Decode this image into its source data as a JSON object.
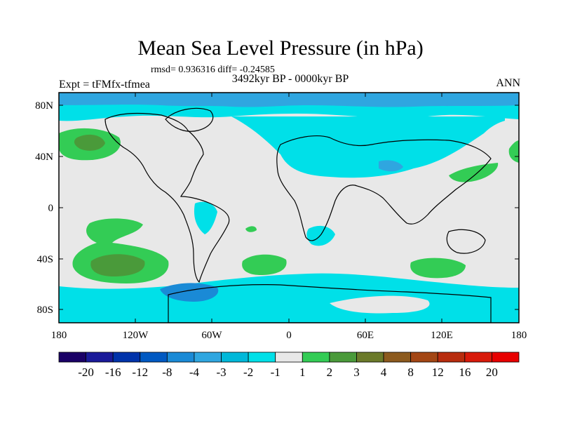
{
  "title": "Mean Sea Level Pressure (in hPa)",
  "stats": "rmsd= 0.936316 diff= -0.24585",
  "experiment": "Expt = tFMfx-tfmea",
  "period": "3492kyr BP - 0000kyr BP",
  "season": "ANN",
  "lat_labels": [
    "80N",
    "40N",
    "0",
    "40S",
    "80S"
  ],
  "lon_labels": [
    "180",
    "120W",
    "60W",
    "0",
    "60E",
    "120E",
    "180"
  ],
  "colorbar_labels": [
    "-20",
    "-16",
    "-12",
    "-8",
    "-4",
    "-3",
    "-2",
    "-1",
    "1",
    "2",
    "3",
    "4",
    "8",
    "12",
    "16",
    "20"
  ],
  "colorbar_colors": [
    "#1a0066",
    "#1a1a99",
    "#0033aa",
    "#0059c2",
    "#1a8ad6",
    "#2fa6e0",
    "#00b8d9",
    "#00e0e8",
    "#e8e8e8",
    "#33cc55",
    "#4a9a3a",
    "#6b7a2a",
    "#8c5a1e",
    "#a34614",
    "#b82c0e",
    "#d81a0a",
    "#e80000"
  ]
}
